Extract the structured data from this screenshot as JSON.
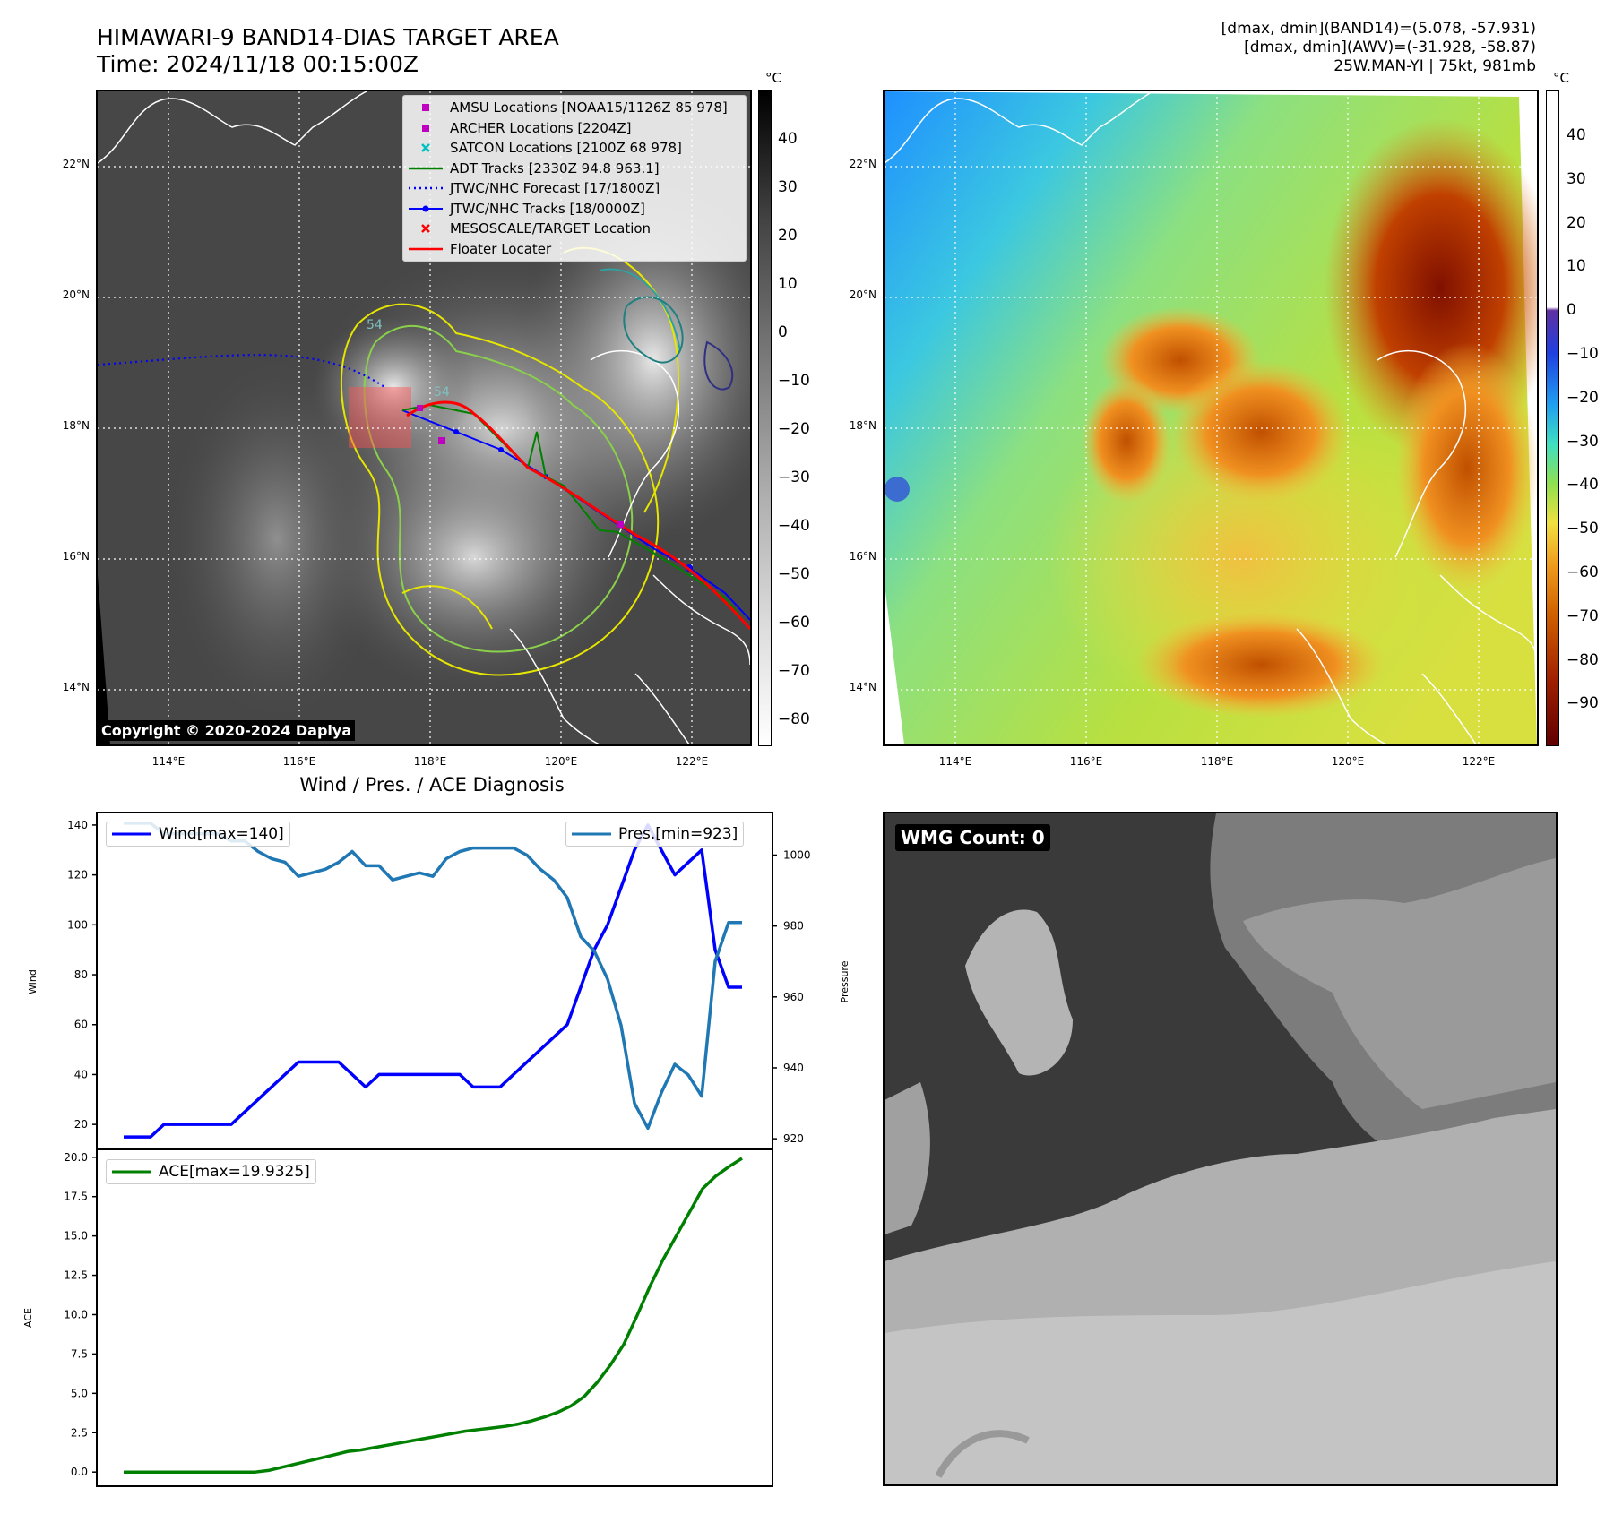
{
  "header": {
    "title_line1": "HIMAWARI-9 BAND14-DIAS TARGET AREA",
    "title_line2": "Time: 2024/11/18 00:15:00Z",
    "info_line1": "[dmax, dmin](BAND14)=(5.078, -57.931)",
    "info_line2": "[dmax, dmin](AWV)=(-31.928, -58.87)",
    "info_line3": "25W.MAN-YI | 75kt, 981mb"
  },
  "maps": {
    "lat_labels": [
      "22°N",
      "20°N",
      "18°N",
      "16°N",
      "14°N"
    ],
    "lon_labels": [
      "114°E",
      "116°E",
      "118°E",
      "120°E",
      "122°E"
    ],
    "copyright": "Copyright © 2020-2024 Dapiya",
    "colorbar_unit": "°C",
    "left_colorbar_ticks": [
      "40",
      "30",
      "20",
      "10",
      "0",
      "−10",
      "−20",
      "−30",
      "−40",
      "−50",
      "−60",
      "−70",
      "−80"
    ],
    "right_colorbar_ticks": [
      "40",
      "30",
      "20",
      "10",
      "0",
      "−10",
      "−20",
      "−30",
      "−40",
      "−50",
      "−60",
      "−70",
      "−80",
      "−90"
    ],
    "legend": [
      {
        "label": "AMSU Locations [NOAA15/1126Z 85 978]",
        "color": "#c000c0",
        "marker": "square"
      },
      {
        "label": "ARCHER Locations [2204Z]",
        "color": "#c000c0",
        "marker": "square"
      },
      {
        "label": "SATCON Locations [2100Z 68 978]",
        "color": "#00c0c0",
        "marker": "x"
      },
      {
        "label": "ADT Tracks [2330Z 94.8 963.1]",
        "color": "#008000",
        "marker": "line"
      },
      {
        "label": "JTWC/NHC Forecast [17/1800Z]",
        "color": "#0000ff",
        "marker": "dotted"
      },
      {
        "label": "JTWC/NHC Tracks [18/0000Z]",
        "color": "#0000ff",
        "marker": "line-dot"
      },
      {
        "label": "MESOSCALE/TARGET Location",
        "color": "#ff0000",
        "marker": "x"
      },
      {
        "label": "Floater Locater",
        "color": "#ff0000",
        "marker": "line"
      }
    ],
    "contour_label": "54"
  },
  "wmg": {
    "label": "WMG Count: 0"
  },
  "chart_data": [
    {
      "type": "line",
      "title": "Wind / Pres. / ACE Diagnosis",
      "ylabel": "Wind",
      "ylabel_right": "Pressure",
      "ylim": [
        10,
        145
      ],
      "ylim_right": [
        917,
        1012
      ],
      "yticks": [
        20,
        40,
        60,
        80,
        100,
        120,
        140
      ],
      "yticks_right": [
        920,
        940,
        960,
        980,
        1000
      ],
      "series": [
        {
          "name": "Wind[max=140]",
          "color": "#0000ff",
          "values": [
            15,
            15,
            15,
            20,
            20,
            20,
            20,
            20,
            20,
            25,
            30,
            35,
            40,
            45,
            45,
            45,
            45,
            40,
            35,
            40,
            40,
            40,
            40,
            40,
            40,
            40,
            35,
            35,
            35,
            40,
            45,
            50,
            55,
            60,
            75,
            90,
            100,
            115,
            130,
            140,
            130,
            120,
            125,
            130,
            90,
            75,
            75
          ]
        },
        {
          "name": "Pres.[min=923]",
          "color": "#1f77b4",
          "values": [
            1009,
            1009,
            1009,
            1006,
            1006,
            1006,
            1006,
            1006,
            1004,
            1004,
            1001,
            999,
            998,
            994,
            995,
            996,
            998,
            1001,
            997,
            997,
            993,
            994,
            995,
            994,
            999,
            1001,
            1002,
            1002,
            1002,
            1002,
            1000,
            996,
            993,
            988,
            977,
            973,
            965,
            952,
            930,
            923,
            933,
            941,
            938,
            932,
            970,
            981,
            981
          ]
        }
      ]
    },
    {
      "type": "line",
      "ylabel": "ACE",
      "ylim": [
        -0.9,
        20.5
      ],
      "yticks": [
        0.0,
        2.5,
        5.0,
        7.5,
        10.0,
        12.5,
        15.0,
        17.5,
        20.0
      ],
      "ytick_labels": [
        "0.0",
        "2.5",
        "5.0",
        "7.5",
        "10.0",
        "12.5",
        "15.0",
        "17.5",
        "20.0"
      ],
      "series": [
        {
          "name": "ACE[max=19.9325]",
          "color": "#008000",
          "values": [
            0,
            0,
            0,
            0,
            0,
            0,
            0,
            0,
            0,
            0,
            0,
            0.1,
            0.3,
            0.5,
            0.7,
            0.9,
            1.1,
            1.3,
            1.4,
            1.55,
            1.7,
            1.85,
            2.0,
            2.15,
            2.3,
            2.45,
            2.6,
            2.7,
            2.8,
            2.9,
            3.05,
            3.25,
            3.5,
            3.8,
            4.2,
            4.8,
            5.7,
            6.8,
            8.1,
            9.9,
            11.8,
            13.5,
            15.0,
            16.5,
            18.0,
            18.8,
            19.4,
            19.93
          ]
        }
      ]
    }
  ]
}
